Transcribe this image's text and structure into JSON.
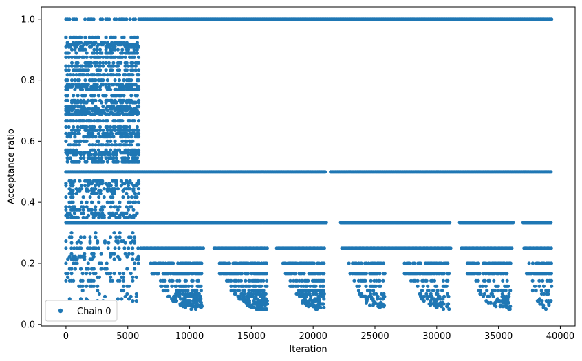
{
  "chart_data": {
    "type": "scatter",
    "xlabel": "Iteration",
    "ylabel": "Acceptance ratio",
    "xlim": [
      -2000,
      41200
    ],
    "ylim": [
      -0.005,
      1.04
    ],
    "xticks": [
      0,
      5000,
      10000,
      15000,
      20000,
      25000,
      30000,
      35000,
      40000
    ],
    "xtick_labels": [
      "0",
      "5000",
      "10000",
      "15000",
      "20000",
      "25000",
      "30000",
      "35000",
      "40000"
    ],
    "yticks": [
      0.0,
      0.2,
      0.4,
      0.6,
      0.8,
      1.0
    ],
    "ytick_labels": [
      "0.0",
      "0.2",
      "0.4",
      "0.6",
      "0.8",
      "1.0"
    ],
    "grid": false,
    "legend_position": "lower-left",
    "series": [
      {
        "name": "Chain 0",
        "color": "#1f77b4",
        "marker": "circle",
        "segments": [
          {
            "x": [
              0,
              5900
            ],
            "y": 1.0,
            "density": "sparse"
          },
          {
            "x": [
              5900,
              39300
            ],
            "y": 1.0,
            "density": "dense"
          },
          {
            "x": [
              0,
              39300
            ],
            "y": 0.5,
            "density": "dense",
            "gaps": [
              [
                21000,
                21400
              ]
            ]
          },
          {
            "x": [
              0,
              39300
            ],
            "y": 0.333,
            "density": "dense",
            "gaps": [
              [
                21100,
                22200
              ],
              [
                31100,
                31800
              ],
              [
                36200,
                36900
              ]
            ]
          },
          {
            "x": [
              0,
              39300
            ],
            "y": 0.25,
            "density": "medium",
            "gaps": [
              [
                11200,
                11900
              ],
              [
                16300,
                17000
              ],
              [
                21000,
                22300
              ],
              [
                31200,
                32000
              ],
              [
                36100,
                37000
              ]
            ]
          },
          {
            "x": [
              6300,
              39300
            ],
            "y": 0.2,
            "density": "clustered"
          },
          {
            "x": [
              6300,
              39300
            ],
            "y": 0.1667,
            "density": "clustered"
          },
          {
            "x": [
              7000,
              39300
            ],
            "y": [
              0.05,
              0.143
            ],
            "density": "clustered-lower"
          },
          {
            "x": [
              0,
              5900
            ],
            "y": [
              0.53,
              0.94
            ],
            "density": "dense-discrete"
          },
          {
            "x": [
              0,
              5900
            ],
            "y": [
              0.35,
              0.47
            ],
            "density": "medium-discrete"
          },
          {
            "x": [
              0,
              5900
            ],
            "y": [
              0.07,
              0.3
            ],
            "density": "sparse-discrete"
          }
        ]
      }
    ]
  }
}
